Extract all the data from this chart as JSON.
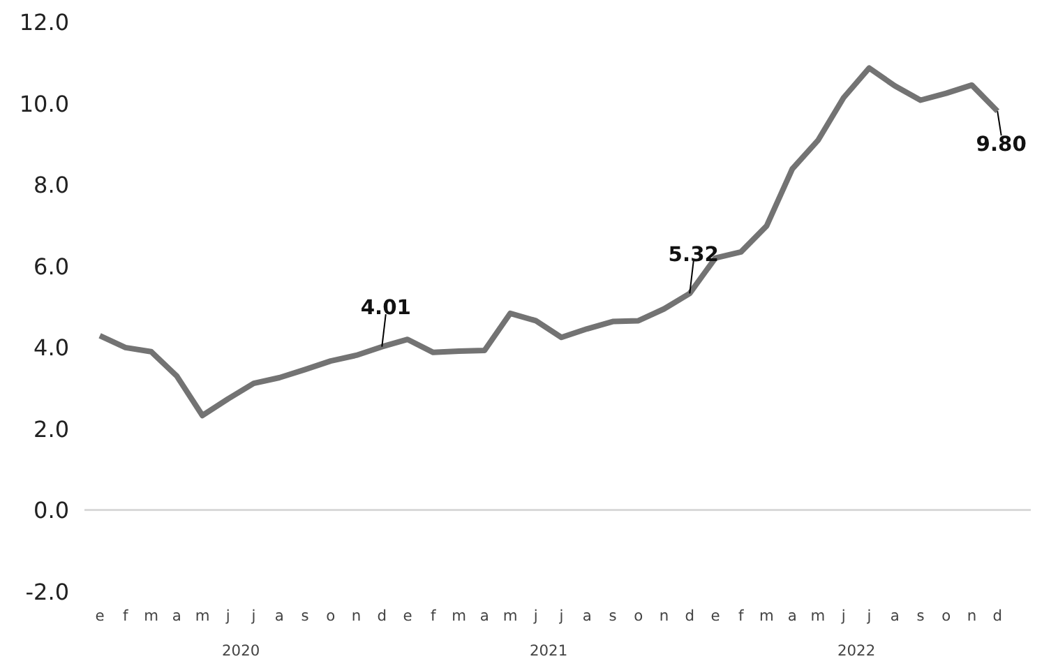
{
  "chart_data": {
    "type": "line",
    "categories": [
      "e",
      "f",
      "m",
      "a",
      "m",
      "j",
      "j",
      "a",
      "s",
      "o",
      "n",
      "d",
      "e",
      "f",
      "m",
      "a",
      "m",
      "j",
      "j",
      "a",
      "s",
      "o",
      "n",
      "d",
      "e",
      "f",
      "m",
      "a",
      "m",
      "j",
      "j",
      "a",
      "s",
      "o",
      "n",
      "d"
    ],
    "series": [
      {
        "color": "#737373",
        "values": [
          4.28,
          3.99,
          3.89,
          3.29,
          2.32,
          2.73,
          3.11,
          3.25,
          3.45,
          3.66,
          3.8,
          4.01,
          4.19,
          3.87,
          3.9,
          3.92,
          4.83,
          4.65,
          4.24,
          4.45,
          4.63,
          4.65,
          4.94,
          5.32,
          6.19,
          6.34,
          6.98,
          8.38,
          9.08,
          10.13,
          10.86,
          10.42,
          10.07,
          10.24,
          10.44,
          9.8
        ],
        "value_labels": [
          null,
          null,
          null,
          null,
          null,
          null,
          null,
          null,
          null,
          null,
          null,
          "4.01",
          null,
          null,
          null,
          null,
          null,
          null,
          null,
          null,
          null,
          null,
          null,
          "5.32",
          null,
          null,
          null,
          null,
          null,
          null,
          null,
          null,
          null,
          null,
          null,
          "9.80"
        ]
      }
    ],
    "annotations": [
      "2020",
      "2021",
      "2022"
    ],
    "ylim": [
      -2,
      12
    ],
    "yticks": [
      {
        "value": -2,
        "label": "-2.0"
      },
      {
        "value": 0,
        "label": "0.0"
      },
      {
        "value": 2,
        "label": "2.0"
      },
      {
        "value": 4,
        "label": "4.0"
      },
      {
        "value": 6,
        "label": "6.0"
      },
      {
        "value": 8,
        "label": "8.0"
      },
      {
        "value": 10,
        "label": "10.0"
      },
      {
        "value": 12,
        "label": "12.0"
      }
    ],
    "ref_lines": [
      {
        "axis": "y",
        "value": 0,
        "color": "#d9d9d9"
      }
    ],
    "grid": false,
    "marker": "none",
    "line_style": "solid"
  }
}
